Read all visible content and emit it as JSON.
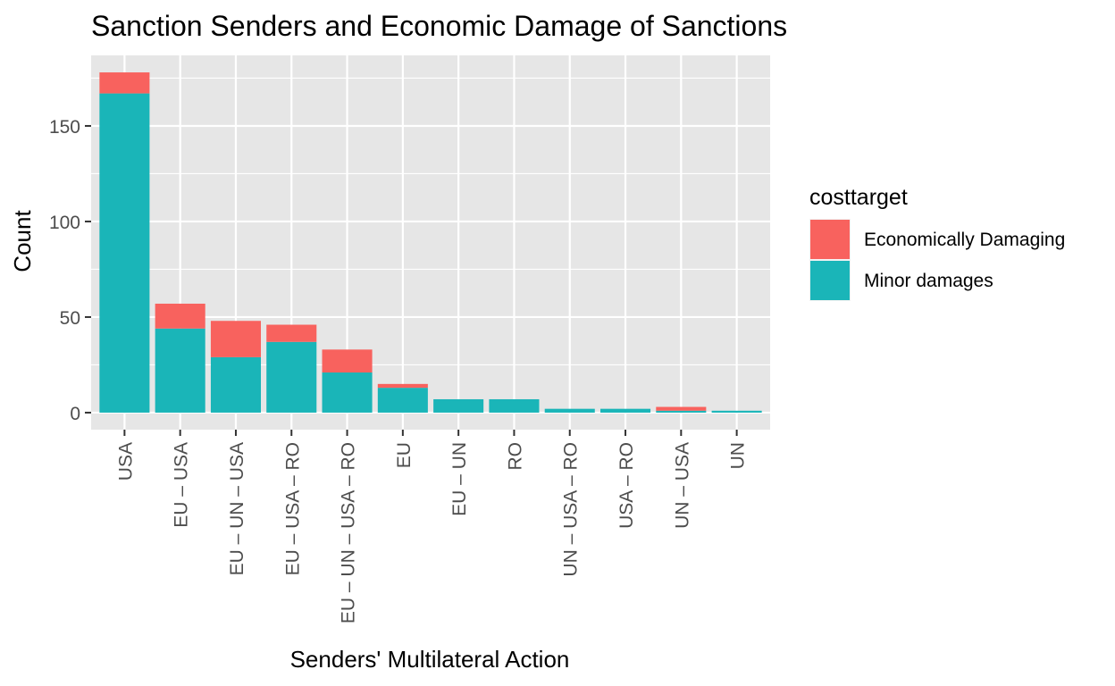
{
  "chart_data": {
    "type": "bar",
    "stacked": true,
    "title": "Sanction Senders and Economic Damage of Sanctions",
    "xlabel": "Senders' Multilateral Action",
    "ylabel": "Count",
    "categories": [
      "USA",
      "EU – USA",
      "EU – UN – USA",
      "EU – USA – RO",
      "EU – UN – USA – RO",
      "EU",
      "EU – UN",
      "RO",
      "UN – USA – RO",
      "USA – RO",
      "UN – USA",
      "UN"
    ],
    "series": [
      {
        "name": "Minor damages",
        "color": "#1AB5B8",
        "values": [
          167,
          44,
          29,
          37,
          21,
          13,
          7,
          7,
          2,
          2,
          1,
          1
        ]
      },
      {
        "name": "Economically Damaging",
        "color": "#F8625E",
        "values": [
          11,
          13,
          19,
          9,
          12,
          2,
          0,
          0,
          0,
          0,
          2,
          0
        ]
      }
    ],
    "ylim": [
      -8.9,
      186.9
    ],
    "yticks": [
      0,
      50,
      100,
      150
    ],
    "grid": true,
    "panel_color": "#E6E6E6",
    "grid_color": "#FFFFFF",
    "legend": {
      "title": "costtarget",
      "placement": "right",
      "entries": [
        {
          "label": "Economically Damaging",
          "color": "#F8625E"
        },
        {
          "label": "Minor damages",
          "color": "#1AB5B8"
        }
      ]
    }
  }
}
